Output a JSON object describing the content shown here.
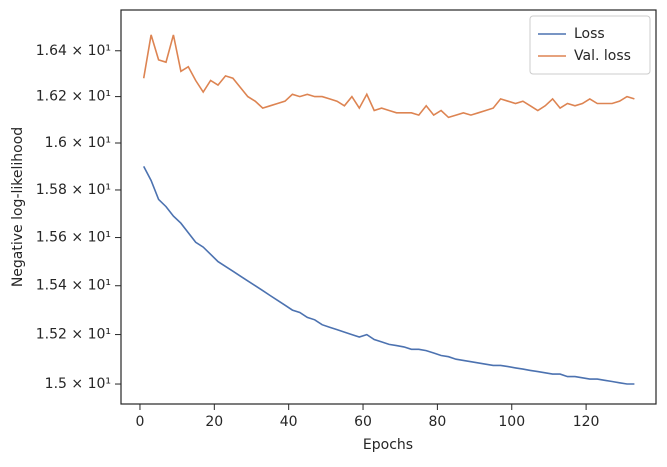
{
  "chart_data": {
    "type": "line",
    "xlabel": "Epochs",
    "ylabel": "Negative log-likelihood",
    "x": [
      1,
      3,
      5,
      7,
      9,
      11,
      13,
      15,
      17,
      19,
      21,
      23,
      25,
      27,
      29,
      31,
      33,
      35,
      37,
      39,
      41,
      43,
      45,
      47,
      49,
      51,
      53,
      55,
      57,
      59,
      61,
      63,
      65,
      67,
      69,
      71,
      73,
      75,
      77,
      79,
      81,
      83,
      85,
      87,
      89,
      91,
      93,
      95,
      97,
      99,
      101,
      103,
      105,
      107,
      109,
      111,
      113,
      115,
      117,
      119,
      121,
      123,
      125,
      127,
      129,
      131,
      133
    ],
    "series": [
      {
        "name": "Loss",
        "color": "#4c72b0",
        "values": [
          15.9,
          15.84,
          15.76,
          15.73,
          15.69,
          15.66,
          15.62,
          15.58,
          15.56,
          15.53,
          15.5,
          15.48,
          15.46,
          15.44,
          15.42,
          15.4,
          15.38,
          15.36,
          15.34,
          15.32,
          15.3,
          15.29,
          15.27,
          15.26,
          15.24,
          15.23,
          15.22,
          15.21,
          15.2,
          15.19,
          15.2,
          15.18,
          15.17,
          15.16,
          15.155,
          15.15,
          15.14,
          15.14,
          15.135,
          15.125,
          15.115,
          15.11,
          15.1,
          15.095,
          15.09,
          15.085,
          15.08,
          15.075,
          15.075,
          15.07,
          15.065,
          15.06,
          15.055,
          15.05,
          15.045,
          15.04,
          15.04,
          15.03,
          15.03,
          15.025,
          15.02,
          15.02,
          15.015,
          15.01,
          15.005,
          15.0,
          15.0
        ]
      },
      {
        "name": "Val. loss",
        "color": "#dd8452",
        "values": [
          16.28,
          16.47,
          16.36,
          16.35,
          16.47,
          16.31,
          16.33,
          16.27,
          16.22,
          16.27,
          16.25,
          16.29,
          16.28,
          16.24,
          16.2,
          16.18,
          16.15,
          16.16,
          16.17,
          16.18,
          16.21,
          16.2,
          16.21,
          16.2,
          16.2,
          16.19,
          16.18,
          16.16,
          16.2,
          16.15,
          16.21,
          16.14,
          16.15,
          16.14,
          16.13,
          16.13,
          16.13,
          16.12,
          16.16,
          16.12,
          16.14,
          16.11,
          16.12,
          16.13,
          16.12,
          16.13,
          16.14,
          16.15,
          16.19,
          16.18,
          16.17,
          16.18,
          16.16,
          16.14,
          16.16,
          16.19,
          16.15,
          16.17,
          16.16,
          16.17,
          16.19,
          16.17,
          16.17,
          16.17,
          16.18,
          16.2,
          16.19
        ]
      }
    ],
    "xlim": [
      -5.1,
      138.8
    ],
    "xticks": [
      0,
      20,
      40,
      60,
      80,
      100,
      120
    ],
    "ylim": [
      14.92,
      16.58
    ],
    "yscale": "log",
    "yticks": [
      {
        "value": 15.0,
        "label": "1.5 × 10¹"
      },
      {
        "value": 15.2,
        "label": "1.52 × 10¹"
      },
      {
        "value": 15.4,
        "label": "1.54 × 10¹"
      },
      {
        "value": 15.6,
        "label": "1.56 × 10¹"
      },
      {
        "value": 15.8,
        "label": "1.58 × 10¹"
      },
      {
        "value": 16.0,
        "label": "1.6 × 10¹"
      },
      {
        "value": 16.2,
        "label": "1.62 × 10¹"
      },
      {
        "value": 16.4,
        "label": "1.64 × 10¹"
      }
    ],
    "legend": "upper right"
  }
}
